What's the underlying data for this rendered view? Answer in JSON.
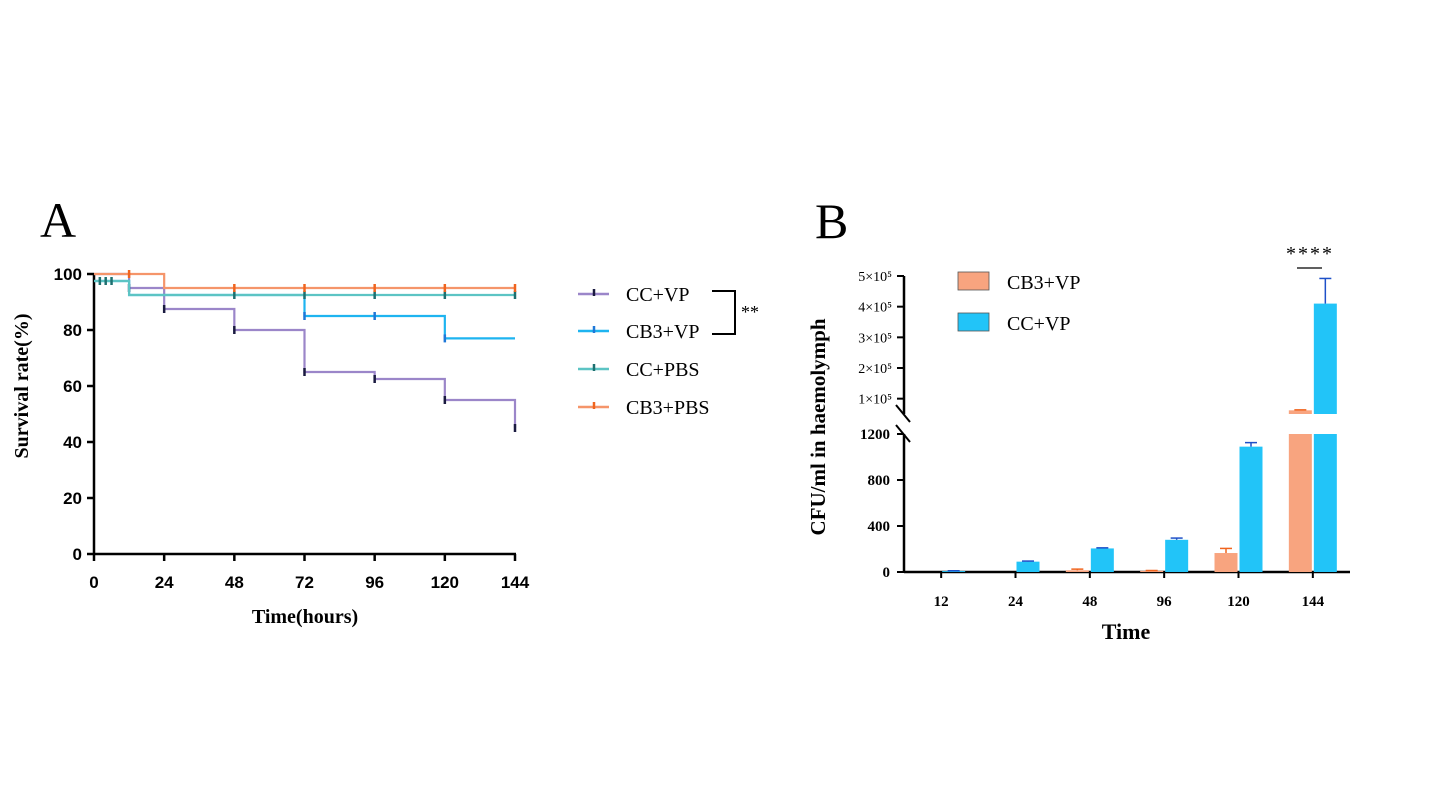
{
  "colors": {
    "cc_vp_A": "#9b86c9",
    "cb3_vp_A": "#1eb4f0",
    "cc_pbs_A": "#5cc4c4",
    "cb3_pbs_A": "#f5956a",
    "tick_dark": "#1a1a40",
    "bar_cb3_vp": "#f8a47f",
    "bar_cc_vp": "#22c4f8",
    "err_cb3_vp": "#f0641e",
    "err_cc_vp": "#1e50c8"
  },
  "chart_data": [
    {
      "panel": "A",
      "type": "line",
      "subtype": "kaplan-meier step",
      "panel_label": "A",
      "xlabel": "Time(hours)",
      "ylabel": "Survival rate(%)",
      "xlim": [
        0,
        144
      ],
      "ylim": [
        0,
        100
      ],
      "xticks": [
        "0",
        "24",
        "48",
        "72",
        "96",
        "120",
        "144"
      ],
      "yticks": [
        "0",
        "20",
        "40",
        "60",
        "80",
        "100"
      ],
      "significance": "**",
      "series": [
        {
          "name": "CC+VP",
          "color_key": "cc_vp_A",
          "steps": [
            [
              0,
              100
            ],
            [
              12,
              95
            ],
            [
              24,
              87.5
            ],
            [
              48,
              80
            ],
            [
              72,
              65
            ],
            [
              96,
              62.5
            ],
            [
              120,
              55
            ],
            [
              144,
              45
            ]
          ],
          "censor": [
            [
              12,
              95
            ],
            [
              24,
              87.5
            ],
            [
              48,
              80
            ],
            [
              72,
              65
            ],
            [
              96,
              62.5
            ],
            [
              120,
              55
            ],
            [
              144,
              45
            ]
          ]
        },
        {
          "name": "CB3+VP",
          "color_key": "cb3_vp_A",
          "steps": [
            [
              0,
              97.5
            ],
            [
              12,
              92.5
            ],
            [
              72,
              85
            ],
            [
              120,
              77
            ],
            [
              144,
              77
            ]
          ],
          "censor": [
            [
              72,
              85
            ],
            [
              96,
              85
            ],
            [
              120,
              77
            ]
          ]
        },
        {
          "name": "CC+PBS",
          "color_key": "cc_pbs_A",
          "steps": [
            [
              0,
              97.5
            ],
            [
              12,
              92.5
            ],
            [
              144,
              92.5
            ]
          ],
          "censor": [
            [
              2,
              97.5
            ],
            [
              4,
              97.5
            ],
            [
              6,
              97.5
            ],
            [
              48,
              92.5
            ],
            [
              72,
              92.5
            ],
            [
              96,
              92.5
            ],
            [
              120,
              92.5
            ],
            [
              144,
              92.5
            ]
          ]
        },
        {
          "name": "CB3+PBS",
          "color_key": "cb3_pbs_A",
          "steps": [
            [
              0,
              100
            ],
            [
              24,
              95
            ],
            [
              144,
              95
            ]
          ],
          "censor": [
            [
              12,
              100
            ],
            [
              48,
              95
            ],
            [
              72,
              95
            ],
            [
              96,
              95
            ],
            [
              120,
              95
            ],
            [
              144,
              95
            ]
          ]
        }
      ]
    },
    {
      "panel": "B",
      "type": "bar",
      "panel_label": "B",
      "xlabel": "Time",
      "ylabel": "CFU/ml in haemolymph",
      "categories": [
        "12",
        "24",
        "48",
        "96",
        "120",
        "144"
      ],
      "y_axis_broken": true,
      "lower_ylim": [
        0,
        1200
      ],
      "lower_yticks": [
        "0",
        "400",
        "800",
        "1200"
      ],
      "upper_ylim": [
        50000,
        500000
      ],
      "upper_yticks": [
        "1×10⁵",
        "2×10⁵",
        "3×10⁵",
        "4×10⁵",
        "5×10⁵"
      ],
      "significance": "****",
      "series": [
        {
          "name": "CB3+VP",
          "color_key": "bar_cb3_vp",
          "err_color_key": "err_cb3_vp",
          "values": [
            0,
            0,
            15,
            10,
            165,
            62000
          ],
          "errors": [
            0,
            0,
            10,
            3,
            40,
            1500
          ]
        },
        {
          "name": "CC+VP",
          "color_key": "bar_cc_vp",
          "err_color_key": "err_cc_vp",
          "values": [
            8,
            90,
            205,
            280,
            1090,
            410000
          ],
          "errors": [
            3,
            5,
            5,
            15,
            35,
            82000
          ]
        }
      ]
    }
  ]
}
